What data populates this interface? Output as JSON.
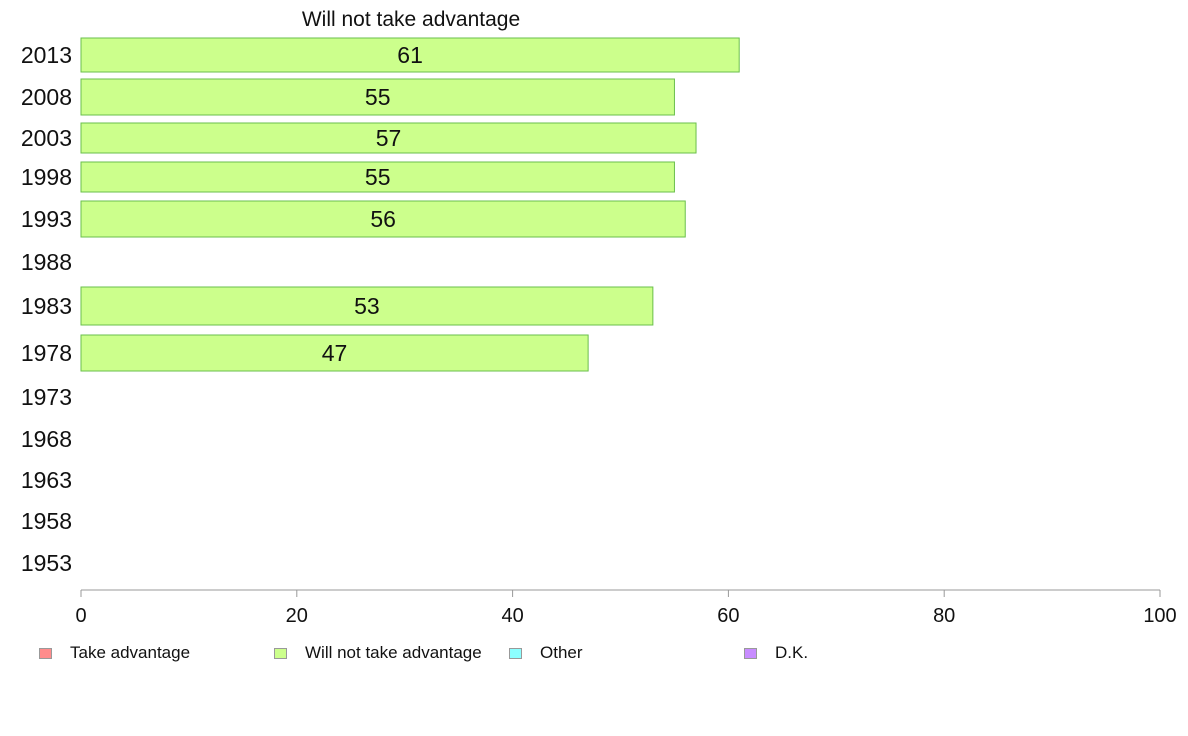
{
  "chart_data": {
    "type": "bar",
    "orientation": "horizontal",
    "title": "Will not take advantage",
    "categories": [
      "2013",
      "2008",
      "2003",
      "1998",
      "1993",
      "1988",
      "1983",
      "1978",
      "1973",
      "1968",
      "1963",
      "1958",
      "1953"
    ],
    "series": [
      {
        "name": "Will not take advantage",
        "values": [
          61,
          55,
          57,
          55,
          56,
          null,
          53,
          47,
          null,
          null,
          null,
          null,
          null
        ]
      }
    ],
    "data_labels": [
      "61",
      "55",
      "57",
      "55",
      "56",
      "",
      "53",
      "47",
      "",
      "",
      "",
      "",
      ""
    ],
    "xlim": [
      0,
      100
    ],
    "xticks": [
      "0",
      "20",
      "40",
      "60",
      "80",
      "100"
    ],
    "grid": false,
    "bar_color": "#ccff8c",
    "bar_border_color": "#6abf4b"
  },
  "legend": {
    "placement": "bottom",
    "items": [
      {
        "label": "Take advantage",
        "color": "#ff8c8c"
      },
      {
        "label": "Will not take advantage",
        "color": "#ccff8c"
      },
      {
        "label": "Other",
        "color": "#8cffff"
      },
      {
        "label": "D.K.",
        "color": "#c88cff"
      }
    ]
  }
}
